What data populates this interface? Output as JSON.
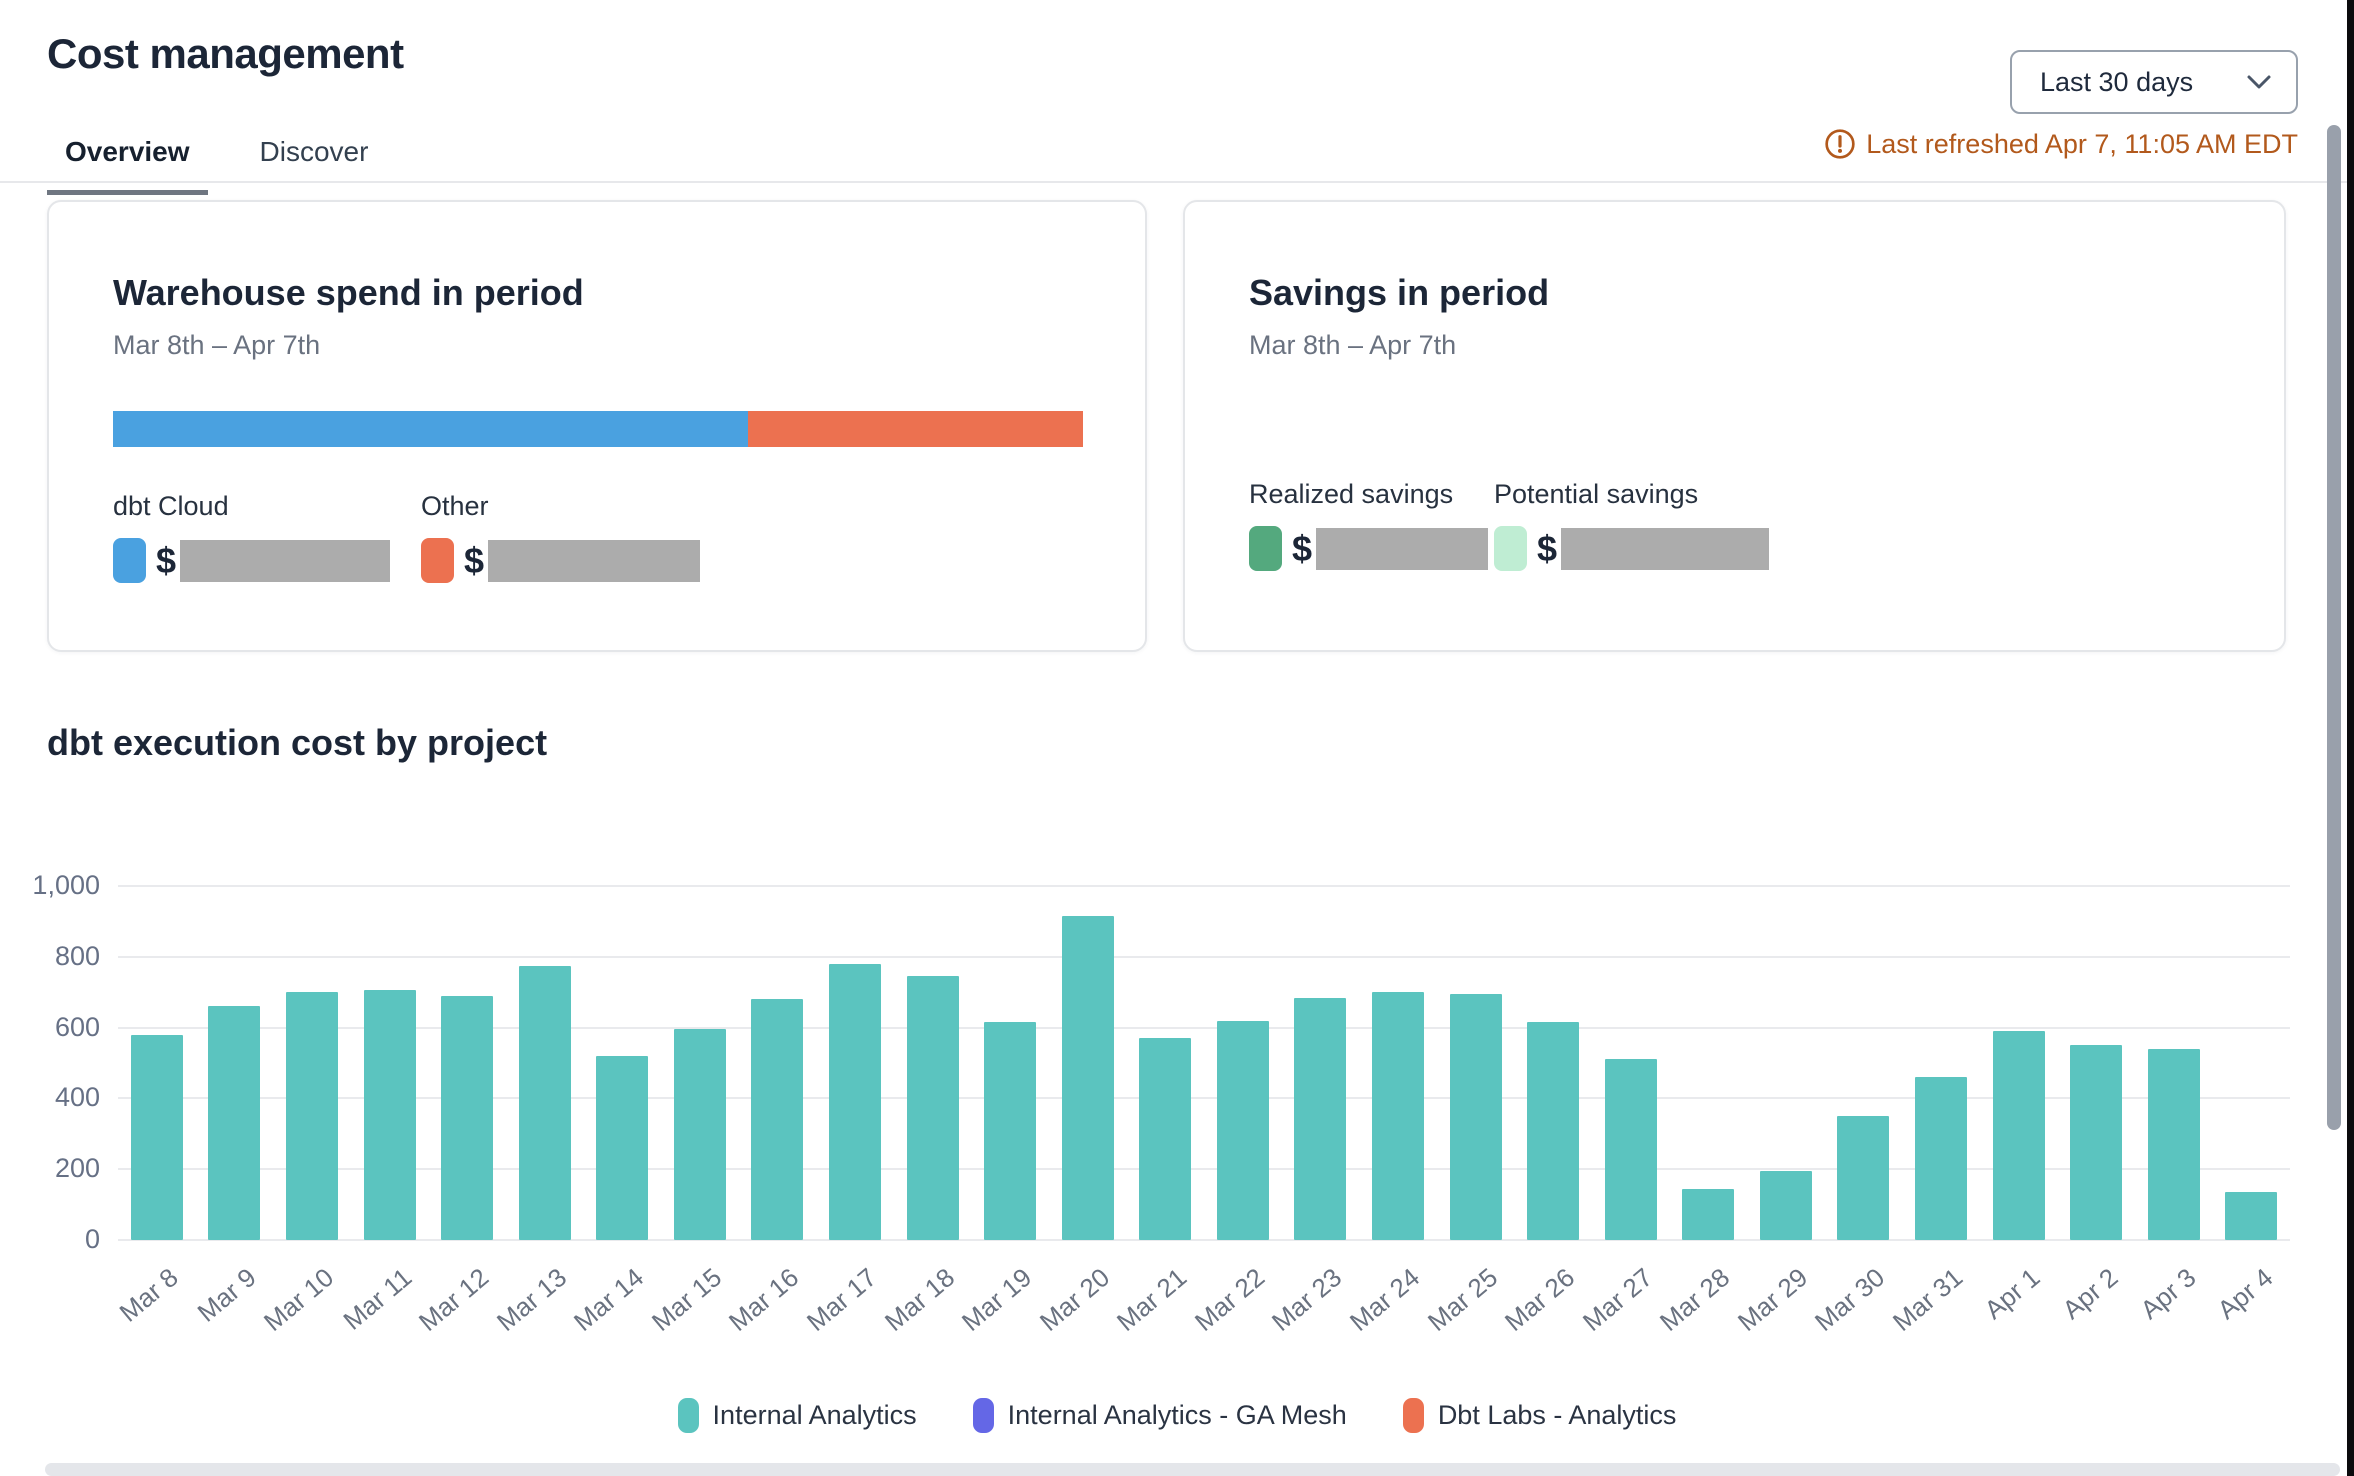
{
  "header": {
    "title": "Cost management",
    "period_selector": "Last 30 days",
    "last_refreshed": "Last refreshed Apr 7, 11:05 AM EDT"
  },
  "tabs": {
    "overview": "Overview",
    "discover": "Discover"
  },
  "cards": {
    "warehouse": {
      "title": "Warehouse spend in period",
      "subtitle": "Mar 8th – Apr 7th",
      "currency_symbol": "$",
      "bar_segments": [
        {
          "label": "dbt Cloud",
          "color": "#4AA1E0",
          "share_pct": 65.5
        },
        {
          "label": "Other",
          "color": "#EC7150",
          "share_pct": 34.5
        }
      ]
    },
    "savings": {
      "title": "Savings in period",
      "subtitle": "Mar 8th – Apr 7th",
      "currency_symbol": "$",
      "items": [
        {
          "label": "Realized savings",
          "color": "#54A97E"
        },
        {
          "label": "Potential savings",
          "color": "#BFEDD3"
        }
      ]
    }
  },
  "chart_section_title": "dbt execution cost by project",
  "chart_data": {
    "type": "bar",
    "title": "dbt execution cost by project",
    "categories": [
      "Mar 8",
      "Mar 9",
      "Mar 10",
      "Mar 11",
      "Mar 12",
      "Mar 13",
      "Mar 14",
      "Mar 15",
      "Mar 16",
      "Mar 17",
      "Mar 18",
      "Mar 19",
      "Mar 20",
      "Mar 21",
      "Mar 22",
      "Mar 23",
      "Mar 24",
      "Mar 25",
      "Mar 26",
      "Mar 27",
      "Mar 28",
      "Mar 29",
      "Mar 30",
      "Mar 31",
      "Apr 1",
      "Apr 2",
      "Apr 3",
      "Apr 4"
    ],
    "series": [
      {
        "name": "Internal Analytics",
        "color": "#5BC4BF",
        "values": [
          580,
          660,
          700,
          705,
          690,
          775,
          520,
          595,
          680,
          780,
          745,
          615,
          915,
          570,
          620,
          685,
          700,
          695,
          615,
          510,
          145,
          195,
          350,
          460,
          590,
          550,
          540,
          135
        ]
      }
    ],
    "legend": [
      {
        "name": "Internal Analytics",
        "color": "#5BC4BF"
      },
      {
        "name": "Internal Analytics - GA Mesh",
        "color": "#6467E6"
      },
      {
        "name": "Dbt Labs - Analytics",
        "color": "#EC7150"
      }
    ],
    "xlabel": "",
    "ylabel": "",
    "ylim": [
      0,
      1000
    ],
    "yticks": [
      0,
      200,
      400,
      600,
      800,
      1000
    ],
    "ytick_labels": [
      "0",
      "200",
      "400",
      "600",
      "800",
      "1,000"
    ],
    "grid": true,
    "legend_position": "bottom"
  }
}
